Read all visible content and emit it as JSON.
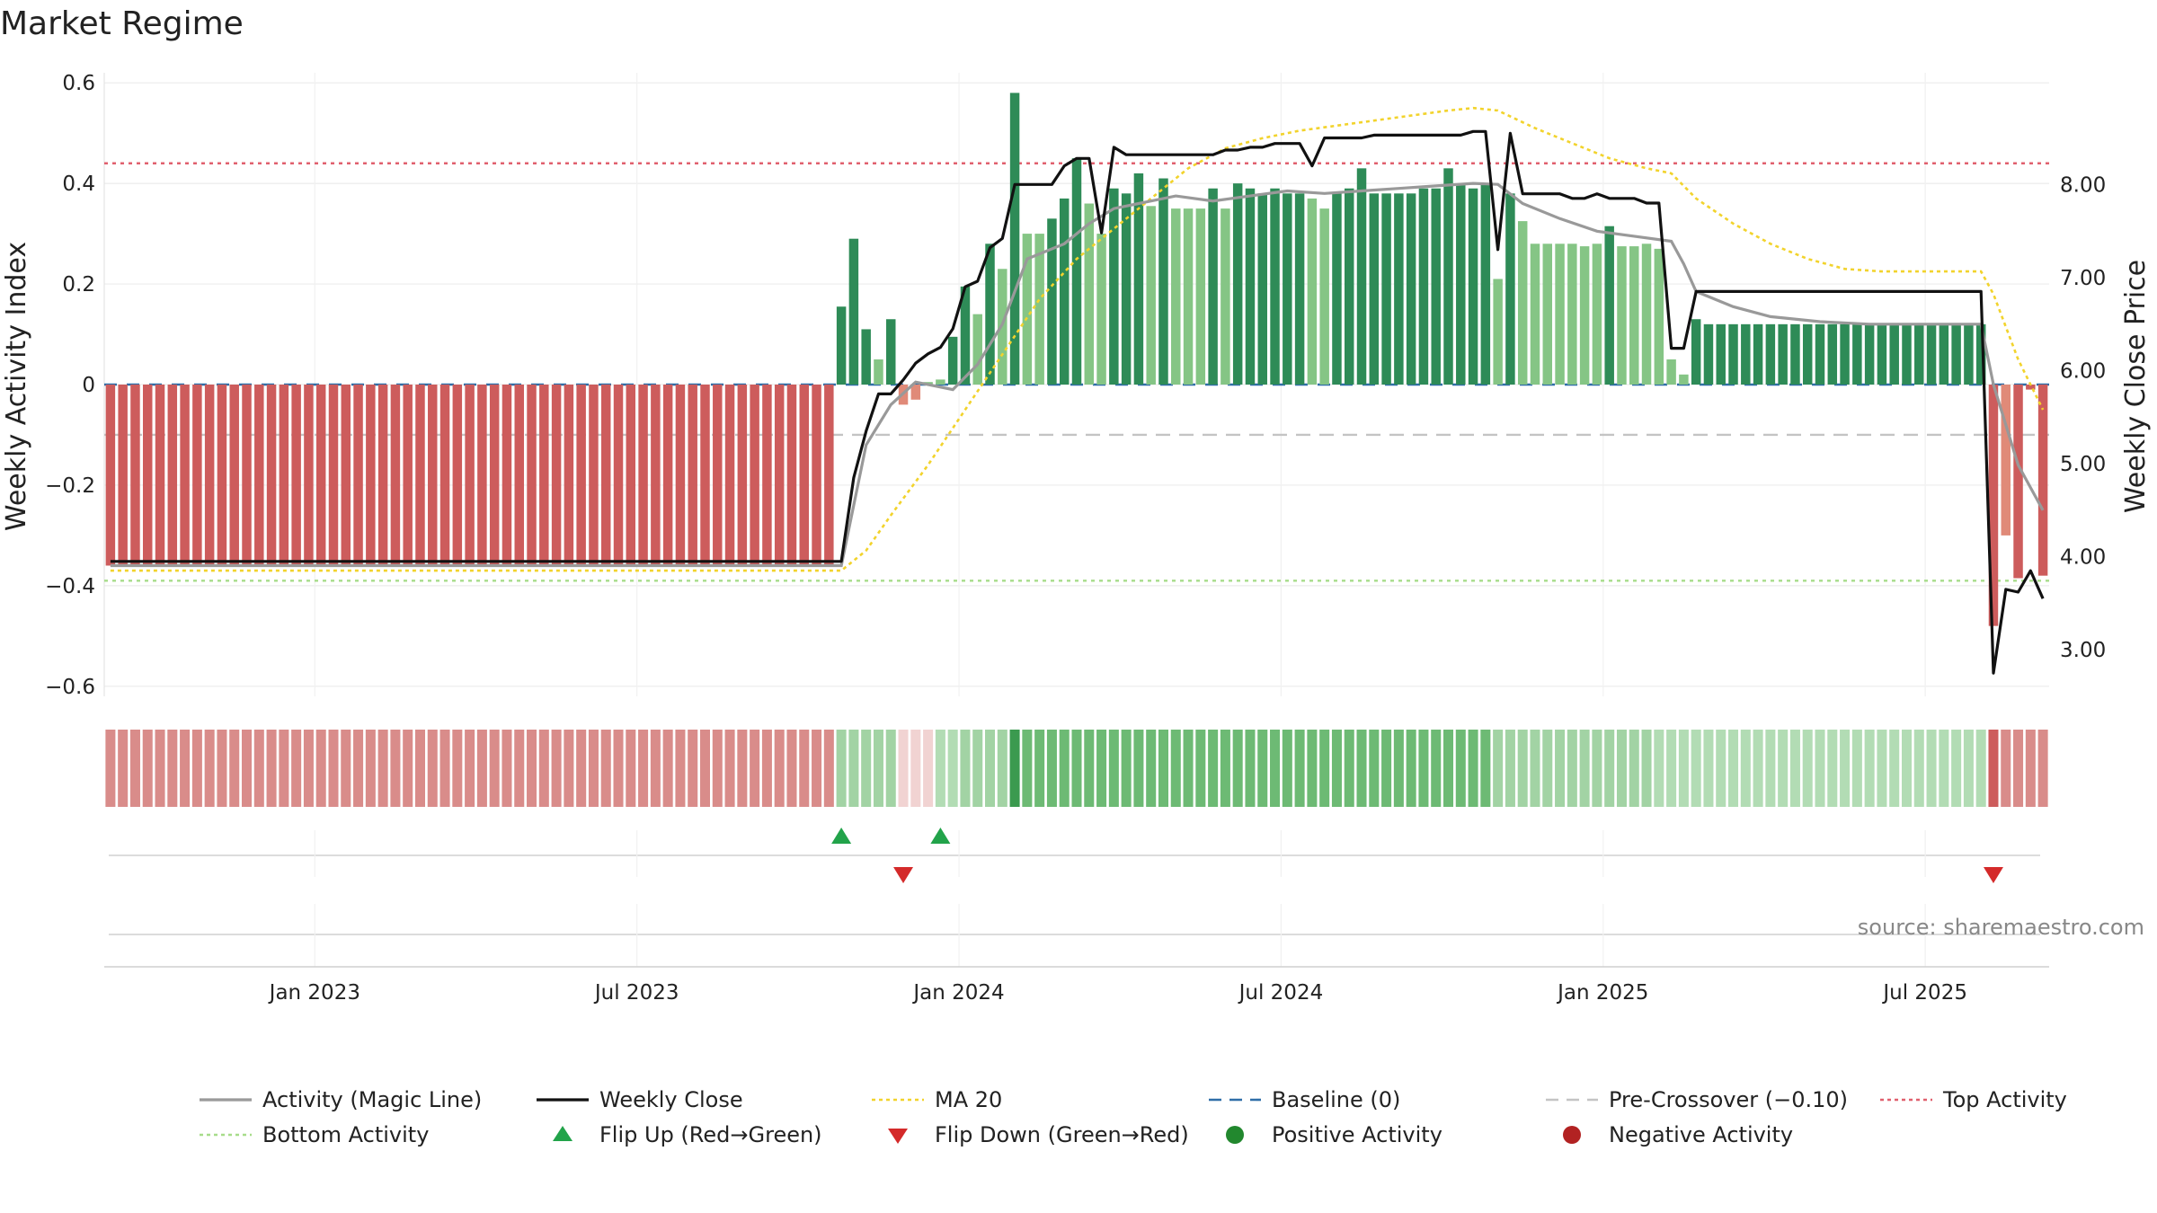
{
  "chart_data": {
    "type": "bar",
    "title": "Market Regime",
    "ylabel": "Weekly Activity Index",
    "y2label": "Weekly Close Price",
    "ylim": [
      -0.62,
      0.62
    ],
    "y2lim": [
      2.5,
      9.2
    ],
    "yticks": [
      {
        "v": 0.6,
        "label": "0.6"
      },
      {
        "v": 0.4,
        "label": "0.4"
      },
      {
        "v": 0.2,
        "label": "0.2"
      },
      {
        "v": 0,
        "label": "0"
      },
      {
        "v": -0.2,
        "label": "−0.2"
      },
      {
        "v": -0.4,
        "label": "−0.4"
      },
      {
        "v": -0.6,
        "label": "−0.6"
      }
    ],
    "y2ticks": [
      {
        "v": 8,
        "label": "8.00"
      },
      {
        "v": 7,
        "label": "7.00"
      },
      {
        "v": 6,
        "label": "6.00"
      },
      {
        "v": 5,
        "label": "5.00"
      },
      {
        "v": 4,
        "label": "4.00"
      },
      {
        "v": 3,
        "label": "3.00"
      }
    ],
    "xticks": [
      {
        "week": 17,
        "label": "Jan 2023"
      },
      {
        "week": 43,
        "label": "Jul 2023"
      },
      {
        "week": 69,
        "label": "Jan 2024"
      },
      {
        "week": 95,
        "label": "Jul 2024"
      },
      {
        "week": 121,
        "label": "Jan 2025"
      },
      {
        "week": 147,
        "label": "Jul 2025"
      }
    ],
    "thresholds": {
      "top": 0.44,
      "bottom": -0.39,
      "pre_crossover": -0.1,
      "baseline": 0
    },
    "activity": [
      -0.36,
      -0.36,
      -0.36,
      -0.36,
      -0.36,
      -0.36,
      -0.36,
      -0.36,
      -0.36,
      -0.36,
      -0.36,
      -0.36,
      -0.36,
      -0.36,
      -0.36,
      -0.36,
      -0.36,
      -0.36,
      -0.36,
      -0.36,
      -0.36,
      -0.36,
      -0.36,
      -0.36,
      -0.36,
      -0.36,
      -0.36,
      -0.36,
      -0.36,
      -0.36,
      -0.36,
      -0.36,
      -0.36,
      -0.36,
      -0.36,
      -0.36,
      -0.36,
      -0.36,
      -0.36,
      -0.36,
      -0.36,
      -0.36,
      -0.36,
      -0.36,
      -0.36,
      -0.36,
      -0.36,
      -0.36,
      -0.36,
      -0.36,
      -0.36,
      -0.36,
      -0.36,
      -0.36,
      -0.36,
      -0.36,
      -0.36,
      -0.36,
      -0.36,
      0.155,
      0.29,
      0.11,
      0.05,
      0.13,
      -0.04,
      -0.03,
      0.005,
      0.01,
      0.095,
      0.195,
      0.14,
      0.28,
      0.23,
      0.58,
      0.3,
      0.3,
      0.33,
      0.37,
      0.45,
      0.36,
      0.3,
      0.39,
      0.38,
      0.42,
      0.355,
      0.41,
      0.35,
      0.35,
      0.35,
      0.39,
      0.35,
      0.4,
      0.39,
      0.38,
      0.39,
      0.38,
      0.38,
      0.37,
      0.35,
      0.38,
      0.39,
      0.43,
      0.38,
      0.38,
      0.38,
      0.38,
      0.39,
      0.39,
      0.43,
      0.4,
      0.39,
      0.4,
      0.21,
      0.38,
      0.325,
      0.28,
      0.28,
      0.28,
      0.28,
      0.275,
      0.28,
      0.315,
      0.275,
      0.275,
      0.28,
      0.27,
      0.05,
      0.02,
      0.13,
      0.12,
      0.12,
      0.12,
      0.12,
      0.12,
      0.12,
      0.12,
      0.12,
      0.12,
      0.12,
      0.12,
      0.12,
      0.12,
      0.12,
      0.12,
      0.12,
      0.12,
      0.12,
      0.12,
      0.12,
      0.12,
      0.12,
      0.12,
      -0.48,
      -0.3,
      -0.385,
      -0.01,
      -0.38
    ],
    "close": [
      3.95,
      3.95,
      3.95,
      3.95,
      3.95,
      3.95,
      3.95,
      3.95,
      3.95,
      3.95,
      3.95,
      3.95,
      3.95,
      3.95,
      3.95,
      3.95,
      3.95,
      3.95,
      3.95,
      3.95,
      3.95,
      3.95,
      3.95,
      3.95,
      3.95,
      3.95,
      3.95,
      3.95,
      3.95,
      3.95,
      3.95,
      3.95,
      3.95,
      3.95,
      3.95,
      3.95,
      3.95,
      3.95,
      3.95,
      3.95,
      3.95,
      3.95,
      3.95,
      3.95,
      3.95,
      3.95,
      3.95,
      3.95,
      3.95,
      3.95,
      3.95,
      3.95,
      3.95,
      3.95,
      3.95,
      3.95,
      3.95,
      3.95,
      3.95,
      3.95,
      4.85,
      5.35,
      5.75,
      5.75,
      5.9,
      6.08,
      6.18,
      6.25,
      6.45,
      6.9,
      6.96,
      7.32,
      7.42,
      8.0,
      8.0,
      8.0,
      8.0,
      8.2,
      8.28,
      8.28,
      7.48,
      8.4,
      8.32,
      8.32,
      8.32,
      8.32,
      8.32,
      8.32,
      8.32,
      8.32,
      8.37,
      8.37,
      8.4,
      8.4,
      8.44,
      8.44,
      8.44,
      8.2,
      8.5,
      8.5,
      8.5,
      8.5,
      8.53,
      8.53,
      8.53,
      8.53,
      8.53,
      8.53,
      8.53,
      8.53,
      8.57,
      8.57,
      7.3,
      8.55,
      7.9,
      7.9,
      7.9,
      7.9,
      7.85,
      7.85,
      7.9,
      7.85,
      7.85,
      7.85,
      7.8,
      7.8,
      6.24,
      6.24,
      6.85,
      6.85,
      6.85,
      6.85,
      6.85,
      6.85,
      6.85,
      6.85,
      6.85,
      6.85,
      6.85,
      6.85,
      6.85,
      6.85,
      6.85,
      6.85,
      6.85,
      6.85,
      6.85,
      6.85,
      6.85,
      6.85,
      6.85,
      6.85,
      2.75,
      3.65,
      3.62,
      3.85,
      3.55
    ],
    "magic_line": [
      [
        0,
        -0.36
      ],
      [
        59,
        -0.36
      ],
      [
        61,
        -0.12
      ],
      [
        63,
        -0.04
      ],
      [
        65,
        0.005
      ],
      [
        68,
        -0.01
      ],
      [
        70,
        0.04
      ],
      [
        72,
        0.12
      ],
      [
        74,
        0.25
      ],
      [
        77,
        0.28
      ],
      [
        79,
        0.32
      ],
      [
        81,
        0.35
      ],
      [
        83,
        0.36
      ],
      [
        86,
        0.375
      ],
      [
        89,
        0.365
      ],
      [
        92,
        0.375
      ],
      [
        95,
        0.385
      ],
      [
        98,
        0.38
      ],
      [
        101,
        0.385
      ],
      [
        104,
        0.39
      ],
      [
        107,
        0.395
      ],
      [
        110,
        0.4
      ],
      [
        112,
        0.398
      ],
      [
        114,
        0.36
      ],
      [
        117,
        0.33
      ],
      [
        120,
        0.305
      ],
      [
        123,
        0.295
      ],
      [
        126,
        0.285
      ],
      [
        127,
        0.24
      ],
      [
        128,
        0.185
      ],
      [
        131,
        0.155
      ],
      [
        134,
        0.135
      ],
      [
        138,
        0.125
      ],
      [
        142,
        0.12
      ],
      [
        150,
        0.12
      ],
      [
        151,
        0.12
      ],
      [
        152,
        0.0
      ],
      [
        154,
        -0.16
      ],
      [
        156,
        -0.25
      ]
    ],
    "ma20": [
      [
        0,
        -0.37
      ],
      [
        59,
        -0.37
      ],
      [
        61,
        -0.33
      ],
      [
        63,
        -0.26
      ],
      [
        66,
        -0.16
      ],
      [
        69,
        -0.05
      ],
      [
        72,
        0.06
      ],
      [
        75,
        0.17
      ],
      [
        78,
        0.25
      ],
      [
        81,
        0.31
      ],
      [
        84,
        0.37
      ],
      [
        87,
        0.43
      ],
      [
        90,
        0.47
      ],
      [
        93,
        0.49
      ],
      [
        96,
        0.505
      ],
      [
        99,
        0.515
      ],
      [
        102,
        0.525
      ],
      [
        105,
        0.535
      ],
      [
        108,
        0.545
      ],
      [
        110,
        0.55
      ],
      [
        112,
        0.545
      ],
      [
        115,
        0.51
      ],
      [
        118,
        0.48
      ],
      [
        121,
        0.45
      ],
      [
        124,
        0.43
      ],
      [
        126,
        0.42
      ],
      [
        128,
        0.37
      ],
      [
        131,
        0.32
      ],
      [
        134,
        0.28
      ],
      [
        137,
        0.25
      ],
      [
        140,
        0.23
      ],
      [
        143,
        0.225
      ],
      [
        150,
        0.225
      ],
      [
        151,
        0.225
      ],
      [
        152,
        0.18
      ],
      [
        154,
        0.05
      ],
      [
        156,
        -0.05
      ]
    ],
    "regime_strip": [
      "r",
      "r",
      "r",
      "r",
      "r",
      "r",
      "r",
      "r",
      "r",
      "r",
      "r",
      "r",
      "r",
      "r",
      "r",
      "r",
      "r",
      "r",
      "r",
      "r",
      "r",
      "r",
      "r",
      "r",
      "r",
      "r",
      "r",
      "r",
      "r",
      "r",
      "r",
      "r",
      "r",
      "r",
      "r",
      "r",
      "r",
      "r",
      "r",
      "r",
      "r",
      "r",
      "r",
      "r",
      "r",
      "r",
      "r",
      "r",
      "r",
      "r",
      "r",
      "r",
      "r",
      "r",
      "r",
      "r",
      "r",
      "r",
      "r",
      "g1",
      "g1",
      "g1",
      "g1",
      "g1",
      "p",
      "p",
      "p",
      "g0",
      "g0",
      "g1",
      "g1",
      "g1",
      "g1",
      "gd",
      "g2",
      "g2",
      "g2",
      "g2",
      "g2",
      "g2",
      "g2",
      "g2",
      "g2",
      "g2",
      "g2",
      "g2",
      "g2",
      "g2",
      "g2",
      "g2",
      "g2",
      "g2",
      "g2",
      "g2",
      "g2",
      "g2",
      "g2",
      "g2",
      "g2",
      "g2",
      "g2",
      "g2",
      "g2",
      "g2",
      "g2",
      "g2",
      "g2",
      "g2",
      "g2",
      "g2",
      "g2",
      "g2",
      "g1",
      "g1",
      "g1",
      "g1",
      "g1",
      "g1",
      "g1",
      "g1",
      "g1",
      "g1",
      "g1",
      "g1",
      "g1",
      "g0",
      "g0",
      "g0",
      "g0",
      "g0",
      "g0",
      "g0",
      "g0",
      "g0",
      "g0",
      "g0",
      "g0",
      "g0",
      "g0",
      "g0",
      "g0",
      "g0",
      "g0",
      "g0",
      "g0",
      "g0",
      "g0",
      "g0",
      "g0",
      "g0",
      "g0",
      "g0",
      "rd",
      "r",
      "r",
      "r",
      "r"
    ],
    "flips": [
      {
        "week": 59,
        "dir": "up"
      },
      {
        "week": 64,
        "dir": "down"
      },
      {
        "week": 67,
        "dir": "up"
      },
      {
        "week": 152,
        "dir": "down"
      }
    ],
    "legend": [
      {
        "label": "Activity (Magic Line)",
        "kind": "line",
        "color": "#999999",
        "dash": ""
      },
      {
        "label": "Weekly Close",
        "kind": "line",
        "color": "#111111",
        "dash": ""
      },
      {
        "label": "MA 20",
        "kind": "line",
        "color": "#f2d32c",
        "dash": "4 4"
      },
      {
        "label": "Baseline (0)",
        "kind": "line",
        "color": "#2f6ea8",
        "dash": "14 9"
      },
      {
        "label": "Pre-Crossover (−0.10)",
        "kind": "line",
        "color": "#c4c4c4",
        "dash": "14 9"
      },
      {
        "label": "Top Activity",
        "kind": "line",
        "color": "#e0606e",
        "dash": "4 4"
      },
      {
        "label": "Bottom Activity",
        "kind": "line",
        "color": "#a7dc8a",
        "dash": "4 4"
      },
      {
        "label": "Flip Up (Red→Green)",
        "kind": "tri-up",
        "color": "#22a34a",
        "dash": ""
      },
      {
        "label": "Flip Down (Green→Red)",
        "kind": "tri-down",
        "color": "#d42a2a",
        "dash": ""
      },
      {
        "label": "Positive Activity",
        "kind": "dot",
        "color": "#22882e",
        "dash": ""
      },
      {
        "label": "Negative Activity",
        "kind": "dot",
        "color": "#b22222",
        "dash": ""
      }
    ],
    "source": "source: sharemaestro.com",
    "colors": {
      "bar_neg": "#cd5c5c",
      "bar_neg_light": "#e08a78",
      "bar_pos_dark": "#2e8b57",
      "bar_pos_light": "#85c585",
      "strip_r": "#d98c8a",
      "strip_rd": "#cd5c5c",
      "strip_p": "#f1d3d2",
      "strip_g0": "#b2dcb4",
      "strip_g1": "#a2d3a4",
      "strip_g2": "#6dba74",
      "strip_gd": "#3b9a4f"
    }
  }
}
